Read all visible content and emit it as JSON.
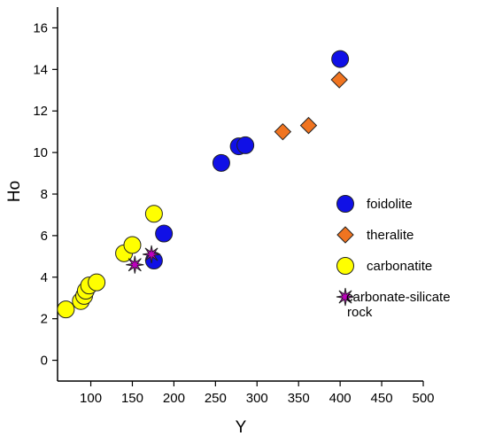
{
  "chart_data": {
    "type": "scatter",
    "title": "",
    "xlabel": "Y",
    "ylabel": "Ho",
    "xlim": [
      60,
      500
    ],
    "ylim": [
      -1,
      17
    ],
    "xticks": [
      100,
      150,
      200,
      250,
      300,
      350,
      400,
      450,
      500
    ],
    "yticks": [
      0,
      2,
      4,
      6,
      8,
      10,
      12,
      14,
      16
    ],
    "grid": false,
    "legend_position": "right",
    "series": [
      {
        "name": "foidolite",
        "marker": "circle",
        "color": "#1010e6",
        "points": [
          [
            400,
            14.5
          ],
          [
            257,
            9.5
          ],
          [
            278,
            10.3
          ],
          [
            286,
            10.35
          ],
          [
            188,
            6.1
          ],
          [
            176,
            4.8
          ]
        ]
      },
      {
        "name": "theralite",
        "marker": "diamond",
        "color": "#f07420",
        "points": [
          [
            399,
            13.5
          ],
          [
            331,
            11.0
          ],
          [
            362,
            11.3
          ]
        ]
      },
      {
        "name": "carbonatite",
        "marker": "circle",
        "color": "#ffff00",
        "points": [
          [
            70,
            2.45
          ],
          [
            88,
            2.85
          ],
          [
            92,
            3.1
          ],
          [
            94,
            3.35
          ],
          [
            98,
            3.6
          ],
          [
            107,
            3.75
          ],
          [
            140,
            5.15
          ],
          [
            150,
            5.55
          ],
          [
            176,
            7.05
          ]
        ]
      },
      {
        "name": "carbonate-silicate rock",
        "marker": "star",
        "color": "#c000c0",
        "points": [
          [
            153,
            4.6
          ],
          [
            173,
            5.1
          ]
        ]
      }
    ]
  }
}
